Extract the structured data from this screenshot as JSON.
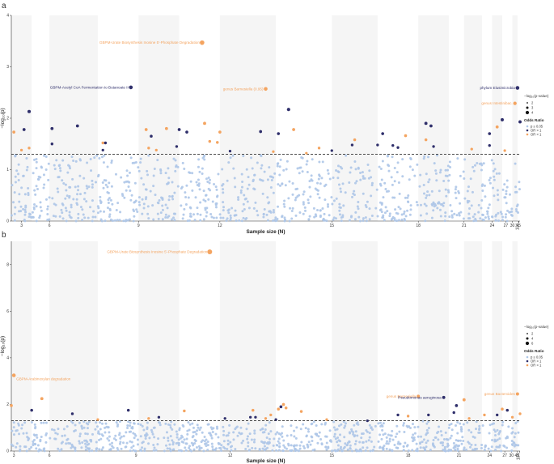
{
  "colors": {
    "ns": "#aec7e8",
    "pos": "#2f2f6b",
    "neg": "#f4a460",
    "band": "#f5f5f5",
    "threshold": "#333333"
  },
  "legend": {
    "size_title": "−log₁₀(p-value)",
    "odds_title": "Odds Ratio",
    "odds_items": [
      "p ≥ 0.05",
      "OR > 1",
      "OR < 1"
    ]
  },
  "chart_data": [
    {
      "panel": "a",
      "type": "scatter",
      "xlabel": "Sample size (N)",
      "ylabel": "−log₁₀(p)",
      "ylim": [
        0,
        4
      ],
      "yticks": [
        0,
        1,
        2,
        3,
        4
      ],
      "xticks": [
        {
          "label": "3",
          "pos": 0.02
        },
        {
          "label": "6",
          "pos": 0.075
        },
        {
          "label": "9",
          "pos": 0.25
        },
        {
          "label": "12",
          "pos": 0.41
        },
        {
          "label": "15",
          "pos": 0.63
        },
        {
          "label": "18",
          "pos": 0.8
        },
        {
          "label": "21",
          "pos": 0.89
        },
        {
          "label": "24",
          "pos": 0.945
        },
        {
          "label": "27",
          "pos": 0.972
        },
        {
          "label": "30",
          "pos": 0.985
        },
        {
          "label": "45",
          "pos": 0.997
        },
        {
          "label": "104",
          "pos": 0.998
        }
      ],
      "threshold": 1.3,
      "legend_sizes": [
        "2",
        "3",
        "4"
      ],
      "annotations": [
        {
          "label": "GBPM-Urate Biosynthesis Inosine 5'-Phosphate Degradation",
          "x": 0.375,
          "y": 3.47,
          "color": "neg"
        },
        {
          "label": "GBPM-Acetyl CoA Fermentation to Butanoate II",
          "x": 0.235,
          "y": 2.6,
          "color": "pos"
        },
        {
          "label": "genus Barnesiella (0.95)",
          "x": 0.5,
          "y": 2.57,
          "color": "neg"
        },
        {
          "label": "phylum Elusimicrobia",
          "x": 0.995,
          "y": 2.59,
          "color": "pos"
        },
        {
          "label": "genus Intestinibac.",
          "x": 0.99,
          "y": 2.29,
          "color": "neg"
        }
      ],
      "significant": [
        {
          "x": 0.005,
          "y": 1.73,
          "d": "neg"
        },
        {
          "x": 0.02,
          "y": 1.38,
          "d": "neg"
        },
        {
          "x": 0.025,
          "y": 1.78,
          "d": "pos"
        },
        {
          "x": 0.035,
          "y": 2.13,
          "d": "pos"
        },
        {
          "x": 0.035,
          "y": 1.42,
          "d": "neg"
        },
        {
          "x": 0.08,
          "y": 1.8,
          "d": "pos"
        },
        {
          "x": 0.08,
          "y": 1.5,
          "d": "pos"
        },
        {
          "x": 0.13,
          "y": 1.85,
          "d": "pos"
        },
        {
          "x": 0.18,
          "y": 1.52,
          "d": "neg"
        },
        {
          "x": 0.18,
          "y": 1.38,
          "d": "pos"
        },
        {
          "x": 0.185,
          "y": 1.52,
          "d": "pos"
        },
        {
          "x": 0.235,
          "y": 2.6,
          "d": "pos"
        },
        {
          "x": 0.265,
          "y": 1.78,
          "d": "neg"
        },
        {
          "x": 0.27,
          "y": 1.42,
          "d": "neg"
        },
        {
          "x": 0.275,
          "y": 1.65,
          "d": "pos"
        },
        {
          "x": 0.285,
          "y": 1.38,
          "d": "neg"
        },
        {
          "x": 0.305,
          "y": 1.8,
          "d": "neg"
        },
        {
          "x": 0.325,
          "y": 1.45,
          "d": "pos"
        },
        {
          "x": 0.33,
          "y": 1.78,
          "d": "pos"
        },
        {
          "x": 0.345,
          "y": 1.73,
          "d": "pos"
        },
        {
          "x": 0.38,
          "y": 1.9,
          "d": "neg"
        },
        {
          "x": 0.375,
          "y": 3.47,
          "d": "neg"
        },
        {
          "x": 0.39,
          "y": 1.55,
          "d": "neg"
        },
        {
          "x": 0.405,
          "y": 1.53,
          "d": "neg"
        },
        {
          "x": 0.41,
          "y": 1.73,
          "d": "neg"
        },
        {
          "x": 0.43,
          "y": 1.36,
          "d": "pos"
        },
        {
          "x": 0.49,
          "y": 1.74,
          "d": "pos"
        },
        {
          "x": 0.5,
          "y": 2.57,
          "d": "neg"
        },
        {
          "x": 0.515,
          "y": 1.35,
          "d": "neg"
        },
        {
          "x": 0.525,
          "y": 1.7,
          "d": "pos"
        },
        {
          "x": 0.545,
          "y": 2.17,
          "d": "pos"
        },
        {
          "x": 0.555,
          "y": 1.78,
          "d": "neg"
        },
        {
          "x": 0.58,
          "y": 1.32,
          "d": "neg"
        },
        {
          "x": 0.605,
          "y": 1.42,
          "d": "neg"
        },
        {
          "x": 0.63,
          "y": 1.37,
          "d": "pos"
        },
        {
          "x": 0.67,
          "y": 1.48,
          "d": "pos"
        },
        {
          "x": 0.675,
          "y": 1.58,
          "d": "neg"
        },
        {
          "x": 0.72,
          "y": 1.48,
          "d": "pos"
        },
        {
          "x": 0.73,
          "y": 1.7,
          "d": "pos"
        },
        {
          "x": 0.75,
          "y": 1.47,
          "d": "pos"
        },
        {
          "x": 0.76,
          "y": 1.43,
          "d": "pos"
        },
        {
          "x": 0.775,
          "y": 1.66,
          "d": "neg"
        },
        {
          "x": 0.815,
          "y": 1.9,
          "d": "pos"
        },
        {
          "x": 0.815,
          "y": 1.58,
          "d": "neg"
        },
        {
          "x": 0.825,
          "y": 1.85,
          "d": "pos"
        },
        {
          "x": 0.83,
          "y": 1.45,
          "d": "pos"
        },
        {
          "x": 0.905,
          "y": 1.4,
          "d": "neg"
        },
        {
          "x": 0.94,
          "y": 1.7,
          "d": "pos"
        },
        {
          "x": 0.94,
          "y": 1.47,
          "d": "pos"
        },
        {
          "x": 0.955,
          "y": 1.83,
          "d": "neg"
        },
        {
          "x": 0.965,
          "y": 1.97,
          "d": "pos"
        },
        {
          "x": 0.97,
          "y": 1.37,
          "d": "neg"
        },
        {
          "x": 0.99,
          "y": 2.29,
          "d": "neg"
        },
        {
          "x": 0.995,
          "y": 2.59,
          "d": "pos"
        },
        {
          "x": 1.0,
          "y": 1.93,
          "d": "pos"
        }
      ]
    },
    {
      "panel": "b",
      "type": "scatter",
      "xlabel": "Sample size (N)",
      "ylabel": "−log₁₀(p)",
      "ylim": [
        0,
        9
      ],
      "yticks": [
        0,
        2,
        4,
        6,
        8
      ],
      "xticks": [
        {
          "label": "3",
          "pos": 0.005
        },
        {
          "label": "6",
          "pos": 0.075
        },
        {
          "label": "9",
          "pos": 0.245
        },
        {
          "label": "12",
          "pos": 0.43
        },
        {
          "label": "15",
          "pos": 0.63
        },
        {
          "label": "18",
          "pos": 0.78
        },
        {
          "label": "21",
          "pos": 0.88
        },
        {
          "label": "24",
          "pos": 0.94
        },
        {
          "label": "27",
          "pos": 0.97
        },
        {
          "label": "30",
          "pos": 0.983
        },
        {
          "label": "45",
          "pos": 0.994
        },
        {
          "label": "104",
          "pos": 0.999
        }
      ],
      "threshold": 1.3,
      "legend_sizes": [
        "2",
        "4",
        "6"
      ],
      "annotations": [
        {
          "label": "GBPM-Urate Biosynthesis Inosine 5'-Phosphate Degradation",
          "x": 0.39,
          "y": 8.55,
          "color": "neg"
        },
        {
          "label": "GBPM-Arabinoxylan degradation",
          "x": 0.005,
          "y": 3.25,
          "color": "neg"
        },
        {
          "label": "genus Barnesiella",
          "x": 0.8,
          "y": 2.35,
          "color": "neg"
        },
        {
          "label": "Pseudomonas aeruginosa",
          "x": 0.85,
          "y": 2.3,
          "color": "pos"
        },
        {
          "label": "genus Bacteroides",
          "x": 0.995,
          "y": 2.45,
          "color": "neg"
        }
      ],
      "significant": [
        {
          "x": 0.005,
          "y": 3.25,
          "d": "neg"
        },
        {
          "x": 0.0,
          "y": 1.95,
          "d": "neg"
        },
        {
          "x": 0.04,
          "y": 1.75,
          "d": "pos"
        },
        {
          "x": 0.06,
          "y": 2.25,
          "d": "neg"
        },
        {
          "x": 0.12,
          "y": 1.6,
          "d": "pos"
        },
        {
          "x": 0.17,
          "y": 1.35,
          "d": "neg"
        },
        {
          "x": 0.23,
          "y": 1.75,
          "d": "pos"
        },
        {
          "x": 0.27,
          "y": 1.4,
          "d": "neg"
        },
        {
          "x": 0.29,
          "y": 1.45,
          "d": "pos"
        },
        {
          "x": 0.34,
          "y": 1.72,
          "d": "neg"
        },
        {
          "x": 0.39,
          "y": 8.55,
          "d": "neg"
        },
        {
          "x": 0.42,
          "y": 1.4,
          "d": "pos"
        },
        {
          "x": 0.47,
          "y": 1.45,
          "d": "pos"
        },
        {
          "x": 0.475,
          "y": 1.75,
          "d": "neg"
        },
        {
          "x": 0.48,
          "y": 1.45,
          "d": "pos"
        },
        {
          "x": 0.5,
          "y": 1.4,
          "d": "neg"
        },
        {
          "x": 0.51,
          "y": 1.55,
          "d": "neg"
        },
        {
          "x": 0.52,
          "y": 1.35,
          "d": "pos"
        },
        {
          "x": 0.525,
          "y": 1.8,
          "d": "neg"
        },
        {
          "x": 0.53,
          "y": 1.9,
          "d": "pos"
        },
        {
          "x": 0.535,
          "y": 2.0,
          "d": "neg"
        },
        {
          "x": 0.54,
          "y": 1.85,
          "d": "neg"
        },
        {
          "x": 0.57,
          "y": 1.7,
          "d": "neg"
        },
        {
          "x": 0.62,
          "y": 1.35,
          "d": "neg"
        },
        {
          "x": 0.7,
          "y": 1.3,
          "d": "pos"
        },
        {
          "x": 0.76,
          "y": 1.55,
          "d": "pos"
        },
        {
          "x": 0.78,
          "y": 1.5,
          "d": "neg"
        },
        {
          "x": 0.8,
          "y": 2.35,
          "d": "neg"
        },
        {
          "x": 0.82,
          "y": 1.55,
          "d": "pos"
        },
        {
          "x": 0.85,
          "y": 2.3,
          "d": "pos"
        },
        {
          "x": 0.87,
          "y": 1.65,
          "d": "pos"
        },
        {
          "x": 0.875,
          "y": 1.95,
          "d": "pos"
        },
        {
          "x": 0.89,
          "y": 2.2,
          "d": "neg"
        },
        {
          "x": 0.9,
          "y": 1.4,
          "d": "neg"
        },
        {
          "x": 0.93,
          "y": 1.55,
          "d": "neg"
        },
        {
          "x": 0.955,
          "y": 1.55,
          "d": "pos"
        },
        {
          "x": 0.965,
          "y": 1.8,
          "d": "neg"
        },
        {
          "x": 0.975,
          "y": 1.75,
          "d": "pos"
        },
        {
          "x": 0.985,
          "y": 1.45,
          "d": "neg"
        },
        {
          "x": 0.995,
          "y": 2.45,
          "d": "neg"
        },
        {
          "x": 1.0,
          "y": 1.6,
          "d": "neg"
        }
      ]
    }
  ]
}
